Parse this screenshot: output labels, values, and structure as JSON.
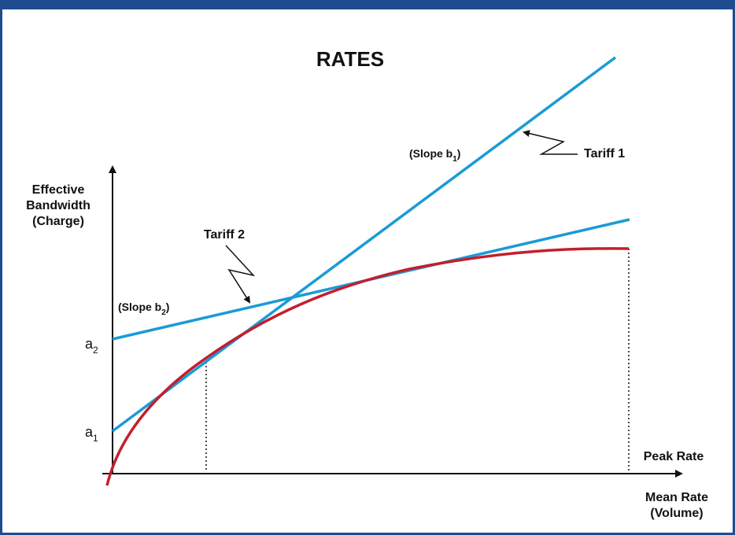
{
  "diagram": {
    "title": "RATES",
    "y_axis_label": [
      "Effective",
      "Bandwidth",
      "(Charge)"
    ],
    "x_axis_label": [
      "Mean Rate",
      "(Volume)"
    ],
    "peak_rate_label": "Peak Rate",
    "tariff1": {
      "label": "Tariff 1",
      "slope_prefix": "(Slope b",
      "slope_sub": "1",
      "slope_suffix": ")"
    },
    "tariff2": {
      "label": "Tariff 2",
      "slope_prefix": "(Slope b",
      "slope_sub": "2",
      "slope_suffix": ")"
    },
    "intercepts": [
      {
        "base": "a",
        "sub": "2"
      },
      {
        "base": "a",
        "sub": "1"
      }
    ],
    "colors": {
      "frame": "#1e4d8f",
      "tariff_lines": "#1a9bd7",
      "curve": "#c41e2e",
      "axes": "#111111"
    }
  }
}
